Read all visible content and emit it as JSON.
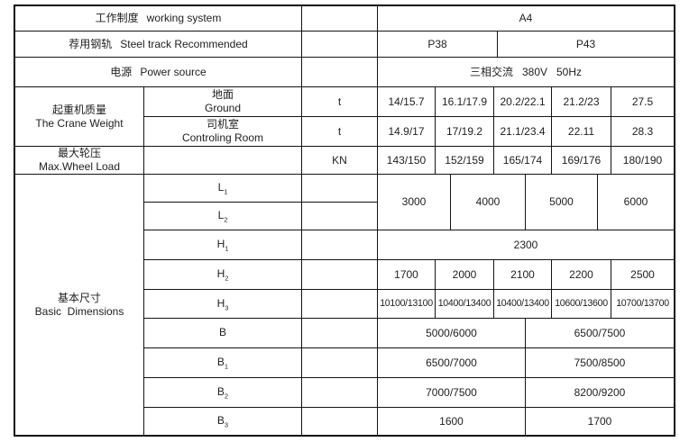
{
  "table": {
    "working_system": {
      "zh": "工作制度",
      "en": "working system",
      "value": "A4"
    },
    "steel_track": {
      "zh": "荐用钢轨",
      "en": "Steel track Recommended",
      "values": [
        "P38",
        "P43"
      ]
    },
    "power_source": {
      "zh": "电源",
      "en": "Power source",
      "value": "三相交流   380V   50Hz"
    },
    "crane_weight": {
      "zh": "起重机质量",
      "en": "The Crane Weight",
      "ground": {
        "zh": "地面",
        "en": "Ground",
        "unit": "t",
        "values": [
          "14/15.7",
          "16.1/17.9",
          "20.2/22.1",
          "21.2/23",
          "27.5"
        ]
      },
      "control_room": {
        "zh": "司机室",
        "en": "Controling Room",
        "unit": "t",
        "values": [
          "14.9/17",
          "17/19.2",
          "21.1/23.4",
          "22.11",
          "28.3"
        ]
      }
    },
    "max_wheel_load": {
      "zh": "最大轮压",
      "en": "Max.Wheel Load",
      "unit": "KN",
      "values": [
        "143/150",
        "152/159",
        "165/174",
        "169/176",
        "180/190"
      ]
    },
    "basic_dimensions": {
      "zh": "基本尺寸",
      "en": "Basic  Dimensions",
      "L1": {
        "main": "L",
        "sub": "1"
      },
      "L2": {
        "main": "L",
        "sub": "2"
      },
      "H1": {
        "main": "H",
        "sub": "1"
      },
      "H2": {
        "main": "H",
        "sub": "2"
      },
      "H3": {
        "main": "H",
        "sub": "3"
      },
      "B": {
        "main": "B",
        "sub": ""
      },
      "B1": {
        "main": "B",
        "sub": "1"
      },
      "B2": {
        "main": "B",
        "sub": "2"
      },
      "B3": {
        "main": "B",
        "sub": "3"
      },
      "L_values": [
        "3000",
        "4000",
        "5000",
        "6000"
      ],
      "H1_value": "2300",
      "H2_values": [
        "1700",
        "2000",
        "2100",
        "2200",
        "2500"
      ],
      "H3_values": [
        "10100/13100",
        "10400/13400",
        "10400/13400",
        "10600/13600",
        "10700/13700"
      ],
      "B_values": [
        "5000/6000",
        "6500/7500"
      ],
      "B1_values": [
        "6500/7000",
        "7500/8500"
      ],
      "B2_values": [
        "7000/7500",
        "8200/9200"
      ],
      "B3_values": [
        "1600",
        "1700"
      ]
    }
  }
}
